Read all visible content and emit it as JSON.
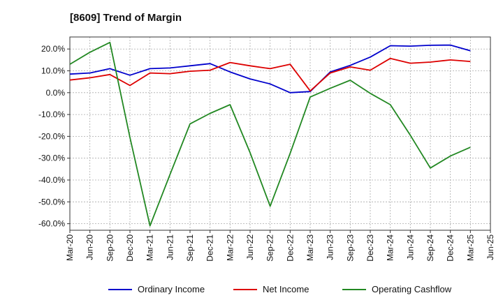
{
  "chart_data": {
    "type": "line",
    "title": "[8609]  Trend of Margin",
    "xlabel": "",
    "ylabel": "",
    "x": [
      "Mar-20",
      "Jun-20",
      "Sep-20",
      "Dec-20",
      "Mar-21",
      "Jun-21",
      "Sep-21",
      "Dec-21",
      "Mar-22",
      "Jun-22",
      "Sep-22",
      "Dec-22",
      "Mar-23",
      "Jun-23",
      "Sep-23",
      "Dec-23",
      "Mar-24",
      "Jun-24",
      "Sep-24",
      "Dec-24",
      "Mar-25",
      "Jun-25"
    ],
    "ylim": [
      -63,
      25.5
    ],
    "yticks": [
      20,
      10,
      0,
      -10,
      -20,
      -30,
      -40,
      -50,
      -60
    ],
    "ytick_labels": [
      "20.0%",
      "10.0%",
      "0.0%",
      "-10.0%",
      "-20.0%",
      "-30.0%",
      "-40.0%",
      "-50.0%",
      "-60.0%"
    ],
    "grid": true,
    "legend_position": "bottom",
    "series": [
      {
        "name": "Ordinary Income",
        "color": "#0000cc",
        "values": [
          8.5,
          9.0,
          11.0,
          8.0,
          11.0,
          11.3,
          12.3,
          13.3,
          9.5,
          6.3,
          4.0,
          0.0,
          0.5,
          9.5,
          12.5,
          16.3,
          21.5,
          21.3,
          21.7,
          21.8,
          19.2,
          null
        ]
      },
      {
        "name": "Net Income",
        "color": "#dd0000",
        "values": [
          5.8,
          6.8,
          8.3,
          3.3,
          9.0,
          8.7,
          9.8,
          10.3,
          13.8,
          12.3,
          11.0,
          13.0,
          0.8,
          9.0,
          11.8,
          10.3,
          15.7,
          13.5,
          14.0,
          15.0,
          14.3,
          null
        ]
      },
      {
        "name": "Operating Cashflow",
        "color": "#228822",
        "values": [
          13.0,
          18.5,
          23.0,
          -20.5,
          -61.0,
          -37.5,
          -14.3,
          -9.5,
          -5.5,
          -27.5,
          -52.0,
          -27.8,
          -2.0,
          2.0,
          5.7,
          -0.3,
          -5.5,
          -19.5,
          -34.5,
          -29.0,
          -25.0,
          null
        ]
      }
    ]
  }
}
